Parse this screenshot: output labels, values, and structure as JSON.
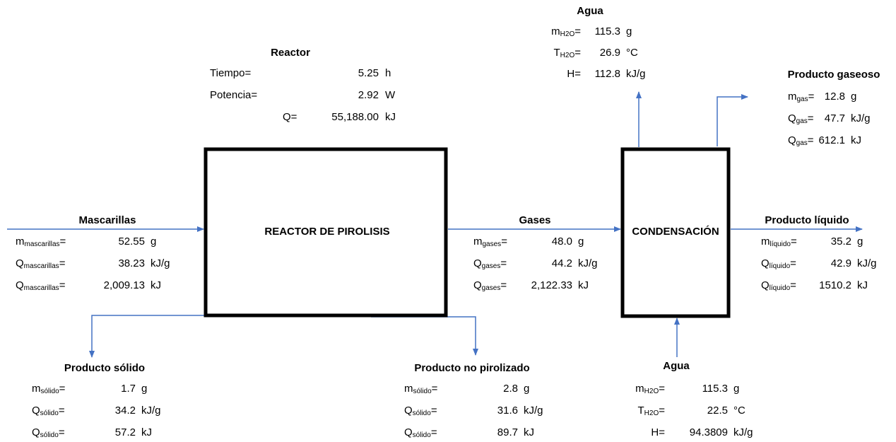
{
  "boxes": {
    "reactor": "REACTOR DE PIROLISIS",
    "condenser": "CONDENSACIÓN"
  },
  "groups": {
    "reactor_info": {
      "title": "Reactor",
      "rows": [
        {
          "label": "Tiempo",
          "sign": "=",
          "value": "5.25",
          "unit": "h"
        },
        {
          "label": "Potencia",
          "sign": "=",
          "value": "2.92",
          "unit": "W"
        },
        {
          "label": "Q",
          "sign": "=",
          "value": "55,188.00",
          "unit": "kJ"
        }
      ]
    },
    "agua_top": {
      "title": "Agua",
      "rows": [
        {
          "label": "m",
          "sub": "H2O",
          "sign": "=",
          "value": "115.3",
          "unit": "g"
        },
        {
          "label": "T",
          "sub": "H2O",
          "sign": "=",
          "value": "26.9",
          "unit": "°C"
        },
        {
          "label": "H",
          "sign": "=",
          "value": "112.8",
          "unit": "kJ/g"
        }
      ]
    },
    "producto_gaseoso": {
      "title": "Producto gaseoso",
      "rows": [
        {
          "label": "m",
          "sub": "gas",
          "sign": "=",
          "value": "12.8",
          "unit": "g"
        },
        {
          "label": "Q",
          "sub": "gas",
          "sign": "=",
          "value": "47.7",
          "unit": "kJ/g"
        },
        {
          "label": "Q",
          "sub": "gas",
          "sign": "=",
          "value": "612.1",
          "unit": "kJ"
        }
      ]
    },
    "mascarillas": {
      "title": "Mascarillas",
      "rows": [
        {
          "label": "m",
          "sub": "mascarillas",
          "sign": "=",
          "value": "52.55",
          "unit": "g"
        },
        {
          "label": "Q",
          "sub": "mascarillas",
          "sign": "=",
          "value": "38.23",
          "unit": "kJ/g"
        },
        {
          "label": "Q",
          "sub": "mascarillas",
          "sign": "=",
          "value": "2,009.13",
          "unit": "kJ"
        }
      ]
    },
    "gases": {
      "title": "Gases",
      "rows": [
        {
          "label": "m",
          "sub": "gases",
          "sign": "=",
          "value": "48.0",
          "unit": "g"
        },
        {
          "label": "Q",
          "sub": "gases",
          "sign": "=",
          "value": "44.2",
          "unit": "kJ/g"
        },
        {
          "label": "Q",
          "sub": "gases",
          "sign": "=",
          "value": "2,122.33",
          "unit": "kJ"
        }
      ]
    },
    "producto_liquido": {
      "title": "Producto líquido",
      "rows": [
        {
          "label": "m",
          "sub": "líquido",
          "sign": "=",
          "value": "35.2",
          "unit": "g"
        },
        {
          "label": "Q",
          "sub": "líquido",
          "sign": "=",
          "value": "42.9",
          "unit": "kJ/g"
        },
        {
          "label": "Q",
          "sub": "líquido",
          "sign": "=",
          "value": "1510.2",
          "unit": "kJ"
        }
      ]
    },
    "producto_solido": {
      "title": "Producto sólido",
      "rows": [
        {
          "label": "m",
          "sub": "sólido",
          "sign": "=",
          "value": "1.7",
          "unit": "g"
        },
        {
          "label": "Q",
          "sub": "sólido",
          "sign": "=",
          "value": "34.2",
          "unit": "kJ/g"
        },
        {
          "label": "Q",
          "sub": "sólido",
          "sign": "=",
          "value": "57.2",
          "unit": "kJ"
        }
      ]
    },
    "producto_no_pirolizado": {
      "title": "Producto no pirolizado",
      "rows": [
        {
          "label": "m",
          "sub": "sólido",
          "sign": "=",
          "value": "2.8",
          "unit": "g"
        },
        {
          "label": "Q",
          "sub": "sólido",
          "sign": "=",
          "value": "31.6",
          "unit": "kJ/g"
        },
        {
          "label": "Q",
          "sub": "sólido",
          "sign": "=",
          "value": "89.7",
          "unit": "kJ"
        }
      ]
    },
    "agua_bottom": {
      "title": "Agua",
      "rows": [
        {
          "label": "m",
          "sub": "H2O",
          "sign": "=",
          "value": "115.3",
          "unit": "g"
        },
        {
          "label": "T",
          "sub": "H2O",
          "sign": "=",
          "value": "22.5",
          "unit": "°C"
        },
        {
          "label": "H",
          "sign": "=",
          "value": "94.3809",
          "unit": "kJ/g"
        }
      ]
    }
  }
}
